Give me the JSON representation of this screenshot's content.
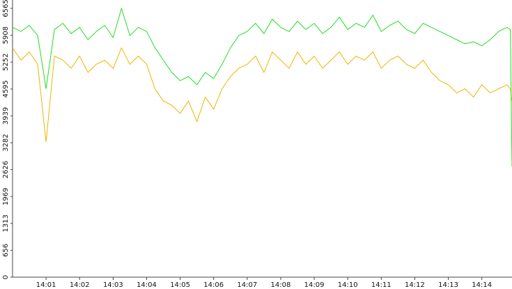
{
  "chart_data": {
    "type": "line",
    "x": [
      0,
      0.25,
      0.5,
      0.75,
      1,
      1.25,
      1.5,
      1.75,
      2,
      2.25,
      2.5,
      2.75,
      3,
      3.25,
      3.5,
      3.75,
      4,
      4.25,
      4.5,
      4.75,
      5,
      5.25,
      5.5,
      5.75,
      6,
      6.25,
      6.5,
      6.75,
      7,
      7.25,
      7.5,
      7.75,
      8,
      8.25,
      8.5,
      8.75,
      9,
      9.25,
      9.5,
      9.75,
      10,
      10.25,
      10.5,
      10.75,
      11,
      11.25,
      11.5,
      11.75,
      12,
      12.25,
      12.5,
      12.75,
      13,
      13.25,
      13.5,
      13.75,
      14,
      14.25,
      14.5,
      14.75,
      14.85,
      14.9
    ],
    "series": [
      {
        "color": "#22dd22",
        "values": [
          6100,
          6000,
          6150,
          5900,
          4600,
          6050,
          6200,
          5950,
          6100,
          5800,
          6000,
          6150,
          5850,
          6565,
          5900,
          6100,
          6000,
          5600,
          5300,
          5000,
          4800,
          4900,
          4700,
          5000,
          4850,
          5200,
          5600,
          5900,
          6000,
          6200,
          5950,
          6300,
          6100,
          6000,
          6250,
          6050,
          6200,
          5950,
          6100,
          6350,
          6050,
          6200,
          6100,
          6400,
          6000,
          6150,
          6250,
          6050,
          5950,
          6200,
          6100,
          6000,
          5900,
          5800,
          5700,
          5750,
          5650,
          5800,
          6000,
          6100,
          6050,
          2700
        ]
      },
      {
        "color": "#f0b400",
        "values": [
          5600,
          5300,
          5500,
          5200,
          3300,
          5400,
          5300,
          5100,
          5400,
          5000,
          5200,
          5300,
          5100,
          5600,
          5200,
          5400,
          5200,
          4600,
          4300,
          4200,
          4000,
          4300,
          3800,
          4400,
          4100,
          4600,
          4900,
          5100,
          5200,
          5400,
          5000,
          5500,
          5300,
          5100,
          5500,
          5200,
          5400,
          5100,
          5300,
          5500,
          5200,
          5400,
          5300,
          5500,
          5100,
          5300,
          5400,
          5200,
          5100,
          5300,
          5000,
          4800,
          4700,
          4500,
          4600,
          4400,
          4700,
          4500,
          4600,
          4700,
          4600,
          4300
        ]
      }
    ],
    "xlim": [
      0,
      14.9
    ],
    "xticks": [
      {
        "value": 1,
        "label": "14:01"
      },
      {
        "value": 2,
        "label": "14:02"
      },
      {
        "value": 3,
        "label": "14:03"
      },
      {
        "value": 4,
        "label": "14:04"
      },
      {
        "value": 5,
        "label": "14:05"
      },
      {
        "value": 6,
        "label": "14:06"
      },
      {
        "value": 7,
        "label": "14:07"
      },
      {
        "value": 8,
        "label": "14:08"
      },
      {
        "value": 9,
        "label": "14:09"
      },
      {
        "value": 10,
        "label": "14:10"
      },
      {
        "value": 11,
        "label": "14:11"
      },
      {
        "value": 12,
        "label": "14:12"
      },
      {
        "value": 13,
        "label": "14:13"
      },
      {
        "value": 14,
        "label": "14:14"
      }
    ],
    "ylim": [
      0,
      6565
    ],
    "yticks": [
      0,
      656,
      1313,
      1969,
      2626,
      3282,
      3939,
      4595,
      5252,
      5908,
      6565
    ]
  }
}
